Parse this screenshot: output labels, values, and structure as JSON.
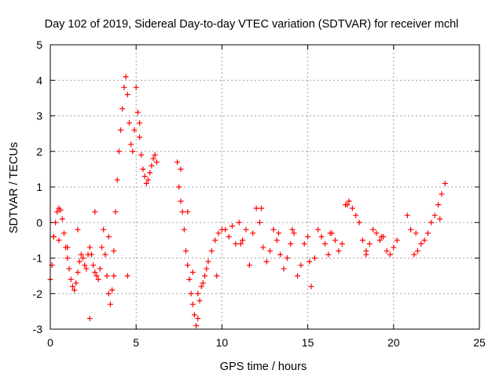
{
  "chart_data": {
    "type": "scatter",
    "title": "Day 102 of 2019, Sidereal Day-to-day VTEC variation (SDTVAR) for receiver mchl",
    "xlabel": "GPS time / hours",
    "ylabel": "SDTVAR / TECUs",
    "xlim": [
      0,
      25
    ],
    "ylim": [
      -3,
      5
    ],
    "x_ticks": [
      0,
      5,
      10,
      15,
      20,
      25
    ],
    "y_ticks": [
      -3,
      -2,
      -1,
      0,
      1,
      2,
      3,
      4,
      5
    ],
    "x_tick_labels": [
      "0",
      "5",
      "10",
      "15",
      "20",
      "25"
    ],
    "y_tick_labels": [
      "-3",
      "-2",
      "-1",
      "0",
      "1",
      "2",
      "3",
      "4",
      "5"
    ],
    "grid": true,
    "marker": "+",
    "color": "#ff0000",
    "series": [
      {
        "name": "SDTVAR",
        "x": [
          0.0,
          0.1,
          0.2,
          0.3,
          0.4,
          0.5,
          0.6,
          0.7,
          0.8,
          0.9,
          1.0,
          1.1,
          1.2,
          1.3,
          1.4,
          1.5,
          1.6,
          1.7,
          1.8,
          1.9,
          2.0,
          2.1,
          2.2,
          2.3,
          2.4,
          2.5,
          2.6,
          2.7,
          2.8,
          2.9,
          3.0,
          3.1,
          3.2,
          3.3,
          3.4,
          3.5,
          3.6,
          3.7,
          3.8,
          3.9,
          4.0,
          4.1,
          4.2,
          4.3,
          4.4,
          4.5,
          4.6,
          4.7,
          4.8,
          4.9,
          5.0,
          5.1,
          5.2,
          5.3,
          5.4,
          5.5,
          5.6,
          5.7,
          5.8,
          5.9,
          6.0,
          6.1,
          6.2,
          7.4,
          7.5,
          7.6,
          7.7,
          7.8,
          7.9,
          8.0,
          8.1,
          8.2,
          8.3,
          8.4,
          8.5,
          8.6,
          8.7,
          8.8,
          8.9,
          9.0,
          9.1,
          9.2,
          9.4,
          9.6,
          9.8,
          10.0,
          10.2,
          10.4,
          10.6,
          10.8,
          11.0,
          11.2,
          11.4,
          11.6,
          11.8,
          12.0,
          12.2,
          12.4,
          12.6,
          12.8,
          13.0,
          13.2,
          13.4,
          13.6,
          13.8,
          14.0,
          14.2,
          14.4,
          14.6,
          14.8,
          15.0,
          15.2,
          15.4,
          15.6,
          15.8,
          16.0,
          16.2,
          16.4,
          16.6,
          16.8,
          17.0,
          17.2,
          17.4,
          17.6,
          17.8,
          18.0,
          18.2,
          18.4,
          18.6,
          18.8,
          19.0,
          19.2,
          19.4,
          19.6,
          19.8,
          20.0,
          20.2,
          20.8,
          21.0,
          21.2,
          21.4,
          21.6,
          21.8,
          22.0,
          22.2,
          22.4,
          22.6,
          22.8,
          23.0,
          0.2,
          0.5,
          1.0,
          1.6,
          2.3,
          2.6,
          3.4,
          3.7,
          4.5,
          5.2,
          7.6,
          8.0,
          8.3,
          8.6,
          9.7,
          11.1,
          12.3,
          13.3,
          14.1,
          15.1,
          16.3,
          17.3,
          18.4,
          19.3,
          21.3,
          22.7
        ],
        "y": [
          -1.6,
          -1.2,
          -0.4,
          0.0,
          0.3,
          0.4,
          0.35,
          0.1,
          -0.3,
          -0.7,
          -1.0,
          -1.3,
          -1.6,
          -1.8,
          -1.9,
          -1.7,
          -1.4,
          -1.1,
          -0.9,
          -1.0,
          -1.2,
          -1.3,
          -0.9,
          -0.7,
          -0.9,
          -1.2,
          -1.4,
          -1.5,
          -1.6,
          -1.3,
          -0.7,
          -0.2,
          -0.9,
          -1.5,
          -2.0,
          -2.3,
          -1.9,
          -0.8,
          0.3,
          1.2,
          2.0,
          2.6,
          3.2,
          3.8,
          4.1,
          3.6,
          2.8,
          2.2,
          2.0,
          2.6,
          3.8,
          3.1,
          2.4,
          1.9,
          1.5,
          1.3,
          1.1,
          1.2,
          1.4,
          1.6,
          1.8,
          1.9,
          1.7,
          1.7,
          1.0,
          0.6,
          0.3,
          -0.2,
          -0.8,
          -1.2,
          -1.6,
          -2.0,
          -2.3,
          -2.6,
          -2.9,
          -2.7,
          -2.2,
          -1.8,
          -1.7,
          -1.5,
          -1.3,
          -1.1,
          -0.8,
          -0.5,
          -0.3,
          -0.2,
          -0.2,
          -0.4,
          -0.1,
          -0.6,
          0.0,
          -0.5,
          -0.2,
          -1.2,
          -0.3,
          0.4,
          0.0,
          -0.7,
          -1.1,
          -0.8,
          -0.2,
          -0.5,
          -0.9,
          -1.3,
          -1.0,
          -0.6,
          -0.3,
          -1.5,
          -1.2,
          -0.6,
          -0.4,
          -1.8,
          -1.0,
          -0.2,
          -0.4,
          -0.6,
          -0.9,
          -0.3,
          -0.5,
          -0.8,
          -0.6,
          0.5,
          0.6,
          0.4,
          0.2,
          0.0,
          -0.5,
          -0.9,
          -0.6,
          -0.2,
          -0.3,
          -0.5,
          -0.4,
          -0.8,
          -0.9,
          -0.7,
          -0.5,
          0.2,
          -0.2,
          -0.9,
          -0.8,
          -0.6,
          -0.5,
          -0.3,
          0.0,
          0.2,
          0.5,
          0.8,
          1.1,
          -0.4,
          -0.5,
          -0.7,
          -0.2,
          -2.7,
          0.3,
          -0.4,
          -1.5,
          -1.5,
          2.8,
          1.5,
          0.3,
          -1.4,
          -2.0,
          -1.5,
          -0.6,
          0.4,
          -0.3,
          -0.2,
          -1.1,
          -0.3,
          0.5,
          -0.8,
          -0.4,
          -0.3,
          0.1
        ]
      }
    ]
  }
}
